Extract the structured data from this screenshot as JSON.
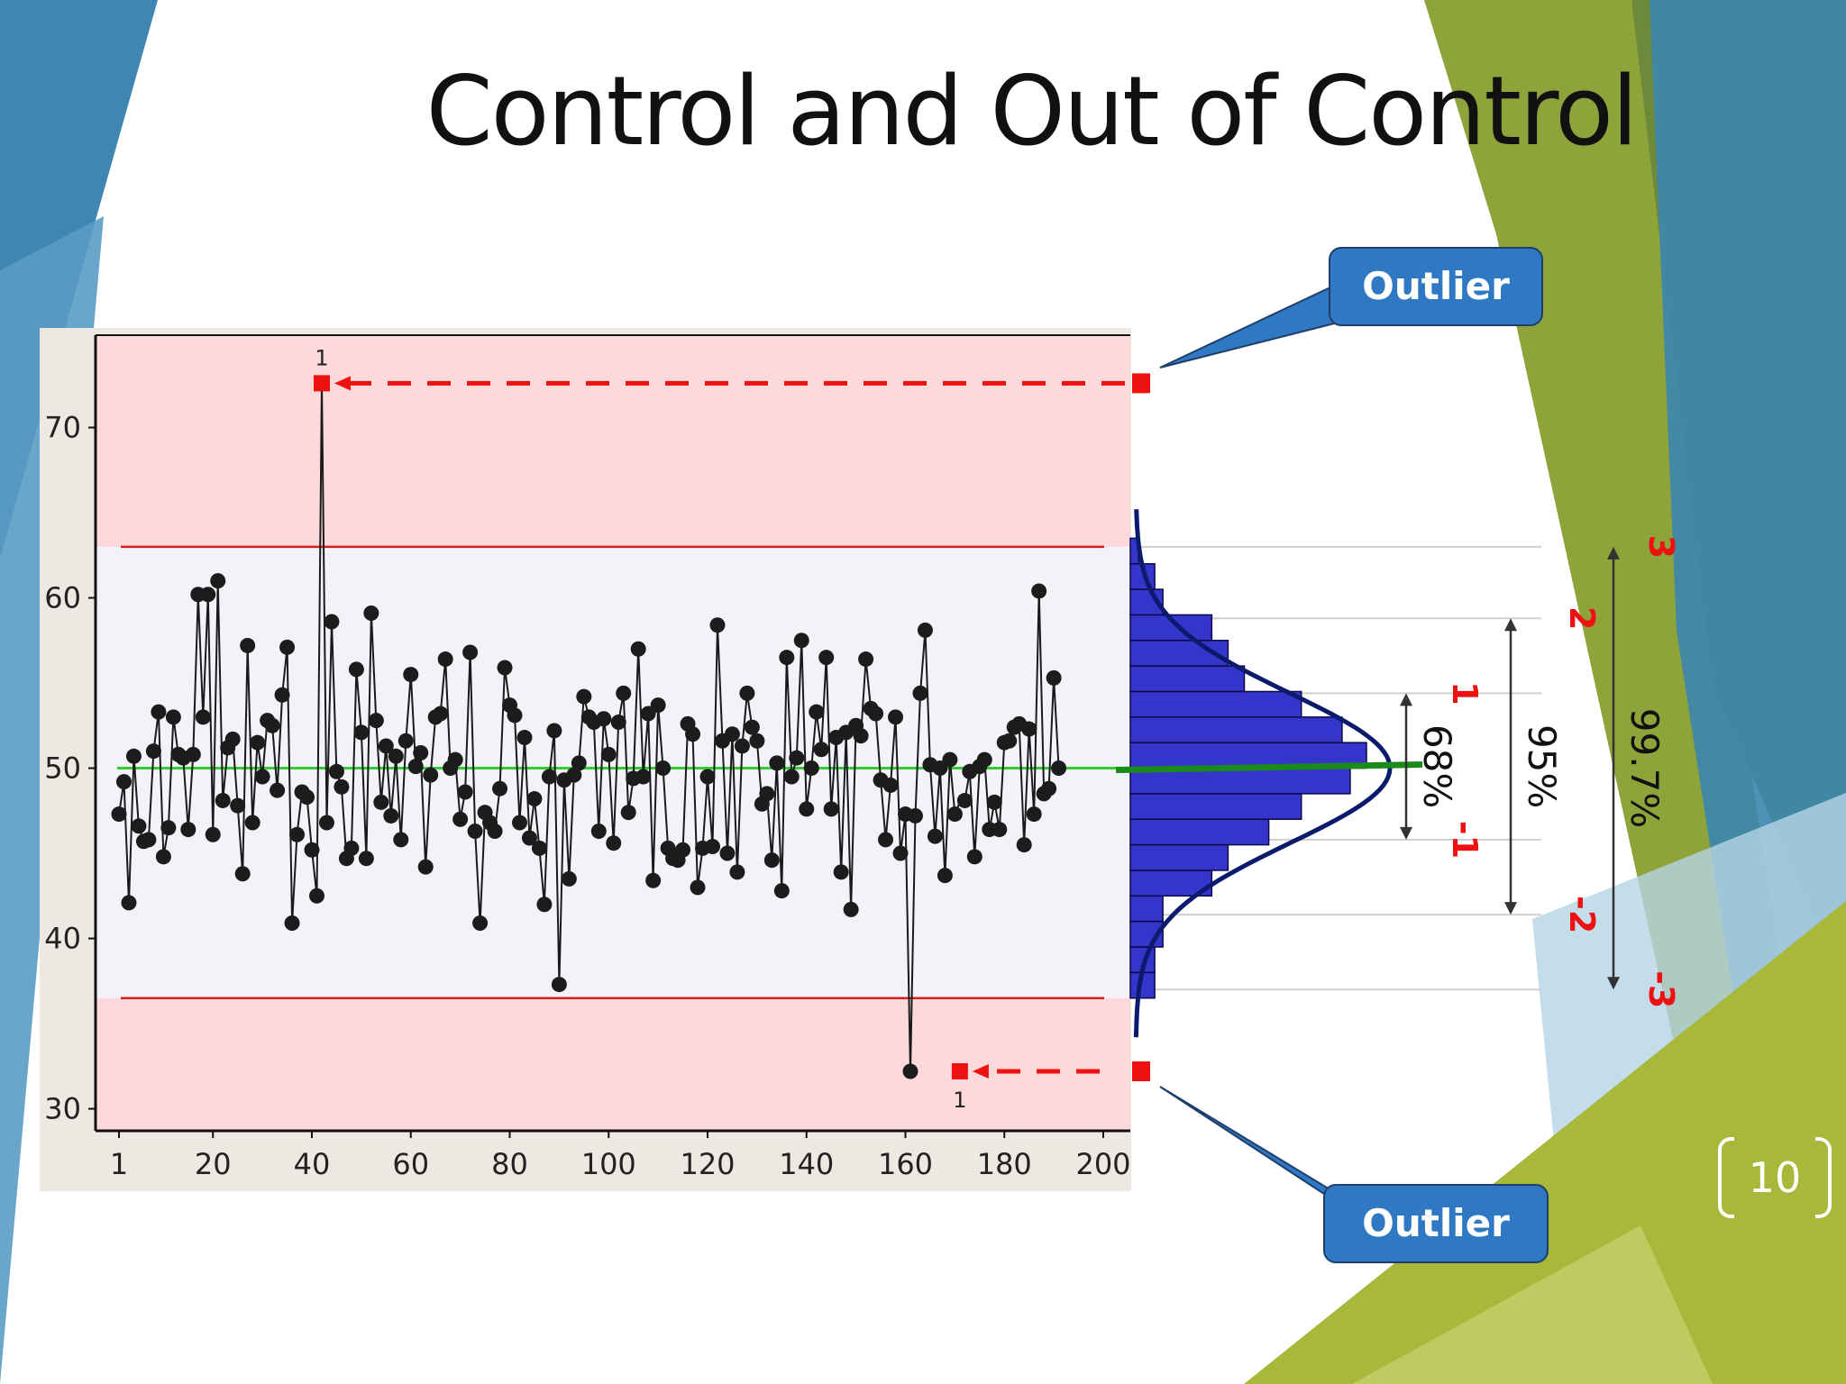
{
  "slide": {
    "title": "Control and Out of Control",
    "page_number": "10",
    "callouts": [
      "Outlier",
      "Outlier"
    ]
  },
  "colors": {
    "out_of_control_zone": "#fdd9dc",
    "in_control_zone": "#f1f3f8",
    "control_limit": "#d42020",
    "center_line": "#33cc33",
    "histogram": "#3535cc",
    "normal_curve": "#0a1b6e",
    "outlier_marker": "#ee1111",
    "sigma_label": "#ee1111",
    "callout": "#2e78c4"
  },
  "chart_data": [
    {
      "type": "line",
      "subtype": "control-chart",
      "xlim": [
        1,
        200
      ],
      "ylim": [
        29.5,
        75
      ],
      "x_ticks": [
        1,
        20,
        40,
        60,
        80,
        100,
        120,
        140,
        160,
        180,
        200
      ],
      "y_ticks": [
        30,
        40,
        50,
        60,
        70
      ],
      "center_line": 50,
      "upper_control_limit": 63,
      "lower_control_limit": 36.5,
      "grid": false,
      "series": [
        {
          "name": "",
          "x_start": 1,
          "values": [
            47.3,
            49.2,
            42.1,
            50.7,
            46.6,
            45.7,
            45.8,
            51.0,
            53.3,
            44.8,
            46.5,
            53.0,
            50.8,
            50.6,
            46.4,
            50.8,
            60.2,
            53.0,
            60.2,
            46.1,
            61.0,
            48.1,
            51.2,
            51.7,
            47.8,
            43.8,
            57.2,
            46.8,
            51.5,
            49.5,
            52.8,
            52.5,
            48.7,
            54.3,
            57.1,
            40.9,
            46.1,
            48.6,
            48.3,
            45.2,
            42.5,
            72.6,
            46.8,
            58.6,
            49.8,
            48.9,
            44.7,
            45.3,
            55.8,
            52.1,
            44.7,
            59.1,
            52.8,
            48.0,
            51.3,
            47.2,
            50.7,
            45.8,
            51.6,
            55.5,
            50.1,
            50.9,
            44.2,
            49.6,
            53.0,
            53.2,
            56.4,
            50.0,
            50.5,
            47.0,
            48.6,
            56.8,
            46.3,
            40.9,
            47.4,
            46.8,
            46.3,
            48.8,
            55.9,
            53.7,
            53.1,
            46.8,
            51.8,
            45.9,
            48.2,
            45.3,
            42.0,
            49.5,
            52.2,
            37.3,
            49.3,
            43.5,
            49.6,
            50.3,
            54.2,
            53.0,
            52.7,
            46.3,
            52.9,
            50.8,
            45.6,
            52.7,
            54.4,
            47.4,
            49.4,
            57.0,
            49.5,
            53.2,
            43.4,
            53.7,
            50.0,
            45.3,
            44.7,
            44.6,
            45.2,
            52.6,
            52.0,
            43.0,
            45.3,
            49.5,
            45.4,
            58.4,
            51.6,
            45.0,
            52.0,
            43.9,
            51.3,
            54.4,
            52.4,
            51.6,
            47.9,
            48.5,
            44.6,
            50.3,
            42.8,
            56.5,
            49.5,
            50.6,
            57.5,
            47.6,
            50.0,
            53.3,
            51.1,
            56.5,
            47.6,
            51.8,
            43.9,
            52.1,
            41.7,
            52.5,
            51.9,
            56.4,
            53.5,
            53.2,
            49.3,
            45.8,
            49.0,
            53.0,
            45.0,
            47.3,
            32.2,
            47.2,
            54.4,
            58.1,
            50.2,
            46.0,
            50.0,
            43.7,
            50.5,
            47.3,
            48.0,
            48.1,
            49.8,
            44.8,
            50.1,
            50.5,
            46.4,
            48.0,
            46.4,
            51.5,
            51.6,
            52.4,
            52.6,
            45.5,
            52.3,
            47.3,
            60.4,
            48.5,
            48.8,
            55.3,
            50.0
          ]
        }
      ],
      "out_of_control_points": [
        {
          "x": 42,
          "y": 72.6,
          "label": "1"
        },
        {
          "x": 171,
          "y": 32.2,
          "label": "1"
        }
      ]
    },
    {
      "type": "bar",
      "subtype": "histogram-with-normal-curve",
      "orientation": "horizontal",
      "bin_lower_edges": [
        36.5,
        38.0,
        39.5,
        41.0,
        42.5,
        44.0,
        45.5,
        47.0,
        48.5,
        50.0,
        51.5,
        53.0,
        54.5,
        56.0,
        57.5,
        59.0,
        60.5,
        62.0
      ],
      "bin_width": 1.5,
      "counts": [
        3,
        3,
        4,
        4,
        10,
        12,
        17,
        21,
        27,
        29,
        26,
        21,
        14,
        12,
        10,
        4,
        3,
        1
      ],
      "curve_mean": 50,
      "curve_sd": 4.4,
      "sigma_levels": [
        "-3",
        "-2",
        "-1",
        "1",
        "2",
        "3"
      ],
      "sigma_lines": [
        37.0,
        41.4,
        45.8,
        54.4,
        58.8,
        63.0
      ],
      "coverage_labels": [
        {
          "range": "±1",
          "text": "68%"
        },
        {
          "range": "±2",
          "text": "95%"
        },
        {
          "range": "±3",
          "text": "99.7%"
        }
      ]
    }
  ]
}
